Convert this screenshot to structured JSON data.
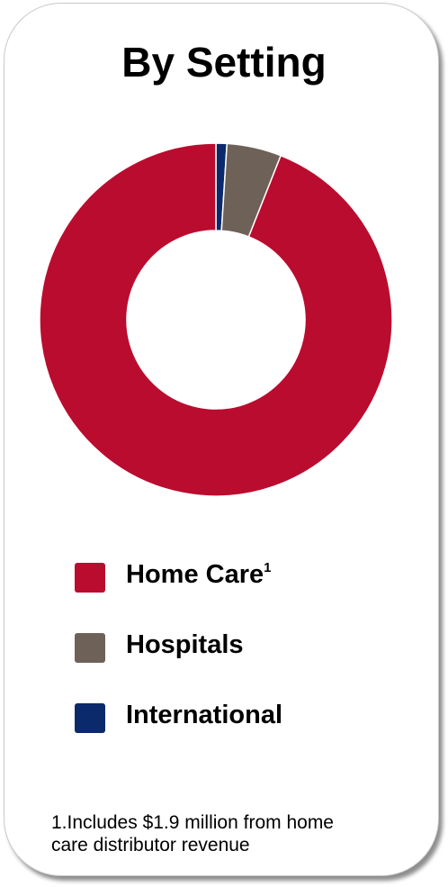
{
  "title": "By Setting",
  "chart_data": {
    "type": "pie",
    "title": "By Setting",
    "slices": [
      {
        "name": "Home Care",
        "value": 94,
        "label": "94%",
        "color": "#ba0c2f"
      },
      {
        "name": "Hospitals",
        "value": 5,
        "label": "5%",
        "color": "#6e6258"
      },
      {
        "name": "International",
        "value": 1,
        "label": "1%",
        "color": "#0b2a6b"
      }
    ]
  },
  "legend": {
    "items": [
      {
        "label": "Home Care",
        "sup": "1",
        "color": "#ba0c2f"
      },
      {
        "label": "Hospitals",
        "sup": "",
        "color": "#6e6258"
      },
      {
        "label": "International",
        "sup": "",
        "color": "#0b2a6b"
      }
    ]
  },
  "footnote": {
    "line1": "1.Includes $1.9 million from home",
    "line2": "care distributor revenue"
  }
}
